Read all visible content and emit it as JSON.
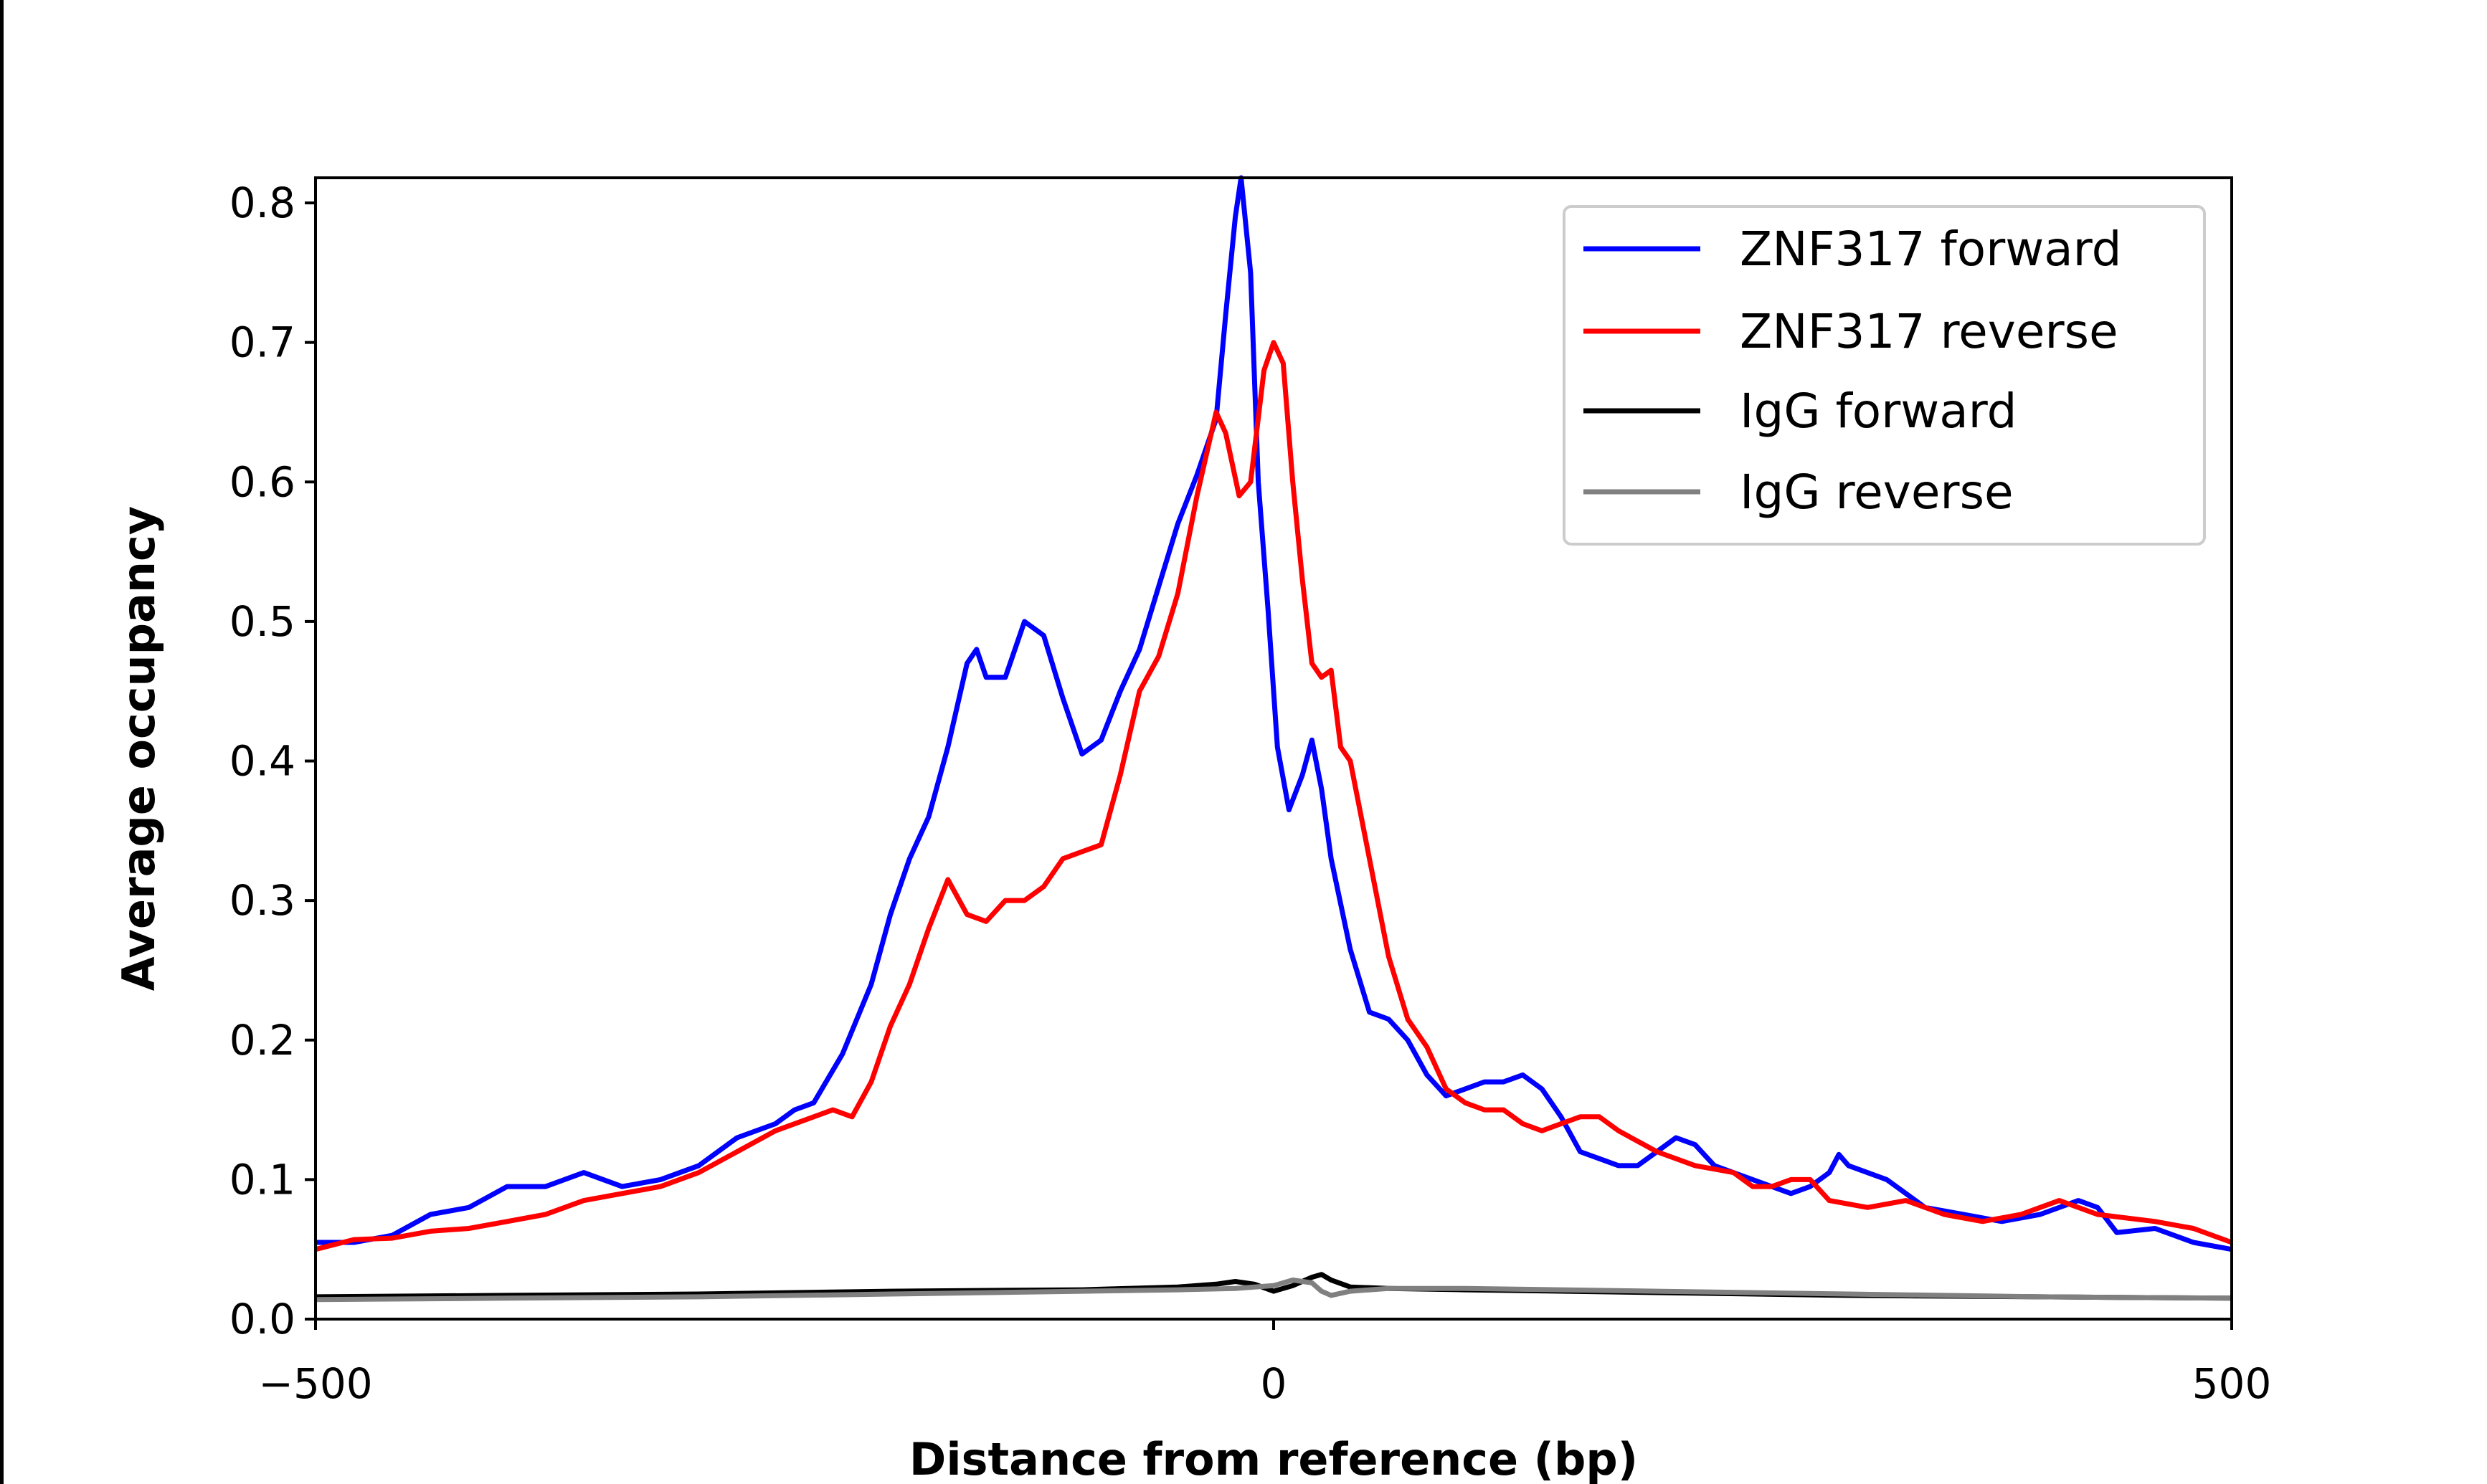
{
  "chart_data": {
    "type": "line",
    "title": "",
    "xlabel": "Distance from reference (bp)",
    "ylabel": "Average occupancy",
    "xlim": [
      -500,
      500
    ],
    "ylim": [
      0,
      0.818
    ],
    "xticks": [
      -500,
      0,
      500
    ],
    "xtick_labels": [
      "−500",
      "0",
      "500"
    ],
    "yticks": [
      0,
      0.1,
      0.2,
      0.3,
      0.4,
      0.5,
      0.6,
      0.7,
      0.8
    ],
    "ytick_labels": [
      "0.0",
      "0.1",
      "0.2",
      "0.3",
      "0.4",
      "0.5",
      "0.6",
      "0.7",
      "0.8"
    ],
    "grid": false,
    "legend_position": "top-right",
    "series": [
      {
        "name": "ZNF317 forward",
        "color": "#0000ff",
        "x": [
          -500,
          -480,
          -460,
          -440,
          -420,
          -400,
          -380,
          -360,
          -340,
          -320,
          -300,
          -280,
          -260,
          -250,
          -240,
          -225,
          -210,
          -200,
          -190,
          -180,
          -170,
          -160,
          -155,
          -150,
          -140,
          -130,
          -120,
          -110,
          -100,
          -90,
          -80,
          -70,
          -60,
          -50,
          -40,
          -30,
          -25,
          -20,
          -17,
          -12,
          -8,
          -3,
          2,
          8,
          15,
          20,
          25,
          30,
          40,
          50,
          60,
          70,
          80,
          90,
          100,
          110,
          120,
          130,
          140,
          150,
          160,
          170,
          180,
          190,
          200,
          210,
          220,
          230,
          250,
          270,
          280,
          290,
          295,
          300,
          320,
          340,
          360,
          380,
          400,
          420,
          430,
          440,
          460,
          480,
          500
        ],
        "y": [
          0.055,
          0.055,
          0.06,
          0.075,
          0.08,
          0.095,
          0.095,
          0.105,
          0.095,
          0.1,
          0.11,
          0.13,
          0.14,
          0.15,
          0.155,
          0.19,
          0.24,
          0.29,
          0.33,
          0.36,
          0.41,
          0.47,
          0.48,
          0.46,
          0.46,
          0.5,
          0.49,
          0.445,
          0.405,
          0.415,
          0.45,
          0.48,
          0.525,
          0.57,
          0.605,
          0.645,
          0.72,
          0.79,
          0.82,
          0.75,
          0.6,
          0.51,
          0.41,
          0.365,
          0.39,
          0.415,
          0.38,
          0.33,
          0.265,
          0.22,
          0.215,
          0.2,
          0.175,
          0.16,
          0.165,
          0.17,
          0.17,
          0.175,
          0.165,
          0.145,
          0.12,
          0.115,
          0.11,
          0.11,
          0.12,
          0.13,
          0.125,
          0.11,
          0.1,
          0.09,
          0.095,
          0.105,
          0.118,
          0.11,
          0.1,
          0.08,
          0.075,
          0.07,
          0.075,
          0.085,
          0.08,
          0.062,
          0.065,
          0.055,
          0.05
        ]
      },
      {
        "name": "ZNF317 reverse",
        "color": "#ff0000",
        "x": [
          -500,
          -480,
          -460,
          -440,
          -420,
          -400,
          -380,
          -360,
          -340,
          -320,
          -300,
          -280,
          -260,
          -240,
          -230,
          -220,
          -210,
          -200,
          -190,
          -180,
          -170,
          -160,
          -150,
          -140,
          -130,
          -120,
          -110,
          -100,
          -90,
          -80,
          -70,
          -60,
          -50,
          -40,
          -30,
          -25,
          -18,
          -12,
          -5,
          0,
          5,
          10,
          15,
          20,
          25,
          30,
          35,
          40,
          50,
          60,
          70,
          80,
          90,
          100,
          110,
          120,
          130,
          140,
          150,
          160,
          170,
          180,
          200,
          220,
          240,
          250,
          260,
          270,
          280,
          290,
          310,
          330,
          350,
          370,
          390,
          410,
          430,
          460,
          480,
          500
        ],
        "y": [
          0.05,
          0.057,
          0.058,
          0.063,
          0.065,
          0.07,
          0.075,
          0.085,
          0.09,
          0.095,
          0.105,
          0.12,
          0.135,
          0.145,
          0.15,
          0.145,
          0.17,
          0.21,
          0.24,
          0.28,
          0.315,
          0.29,
          0.285,
          0.3,
          0.3,
          0.31,
          0.33,
          0.335,
          0.34,
          0.39,
          0.45,
          0.475,
          0.52,
          0.59,
          0.65,
          0.635,
          0.59,
          0.6,
          0.68,
          0.7,
          0.685,
          0.6,
          0.53,
          0.47,
          0.46,
          0.465,
          0.41,
          0.4,
          0.33,
          0.26,
          0.215,
          0.195,
          0.165,
          0.155,
          0.15,
          0.15,
          0.14,
          0.135,
          0.14,
          0.145,
          0.145,
          0.135,
          0.12,
          0.11,
          0.105,
          0.095,
          0.095,
          0.1,
          0.1,
          0.085,
          0.08,
          0.085,
          0.075,
          0.07,
          0.075,
          0.085,
          0.075,
          0.07,
          0.065,
          0.055
        ]
      },
      {
        "name": "IgG forward",
        "color": "#000000",
        "x": [
          -500,
          -400,
          -300,
          -200,
          -100,
          -50,
          -30,
          -20,
          -10,
          0,
          10,
          20,
          25,
          30,
          40,
          60,
          100,
          200,
          300,
          400,
          500
        ],
        "y": [
          0.016,
          0.017,
          0.018,
          0.02,
          0.021,
          0.023,
          0.025,
          0.027,
          0.025,
          0.02,
          0.024,
          0.03,
          0.032,
          0.028,
          0.023,
          0.022,
          0.021,
          0.019,
          0.017,
          0.016,
          0.015
        ]
      },
      {
        "name": "IgG reverse",
        "color": "#808080",
        "x": [
          -500,
          -400,
          -300,
          -200,
          -100,
          -50,
          -20,
          0,
          10,
          20,
          25,
          30,
          40,
          60,
          100,
          200,
          300,
          400,
          500
        ],
        "y": [
          0.014,
          0.015,
          0.016,
          0.018,
          0.02,
          0.021,
          0.022,
          0.024,
          0.028,
          0.026,
          0.02,
          0.017,
          0.02,
          0.022,
          0.022,
          0.02,
          0.018,
          0.016,
          0.015
        ]
      }
    ]
  }
}
